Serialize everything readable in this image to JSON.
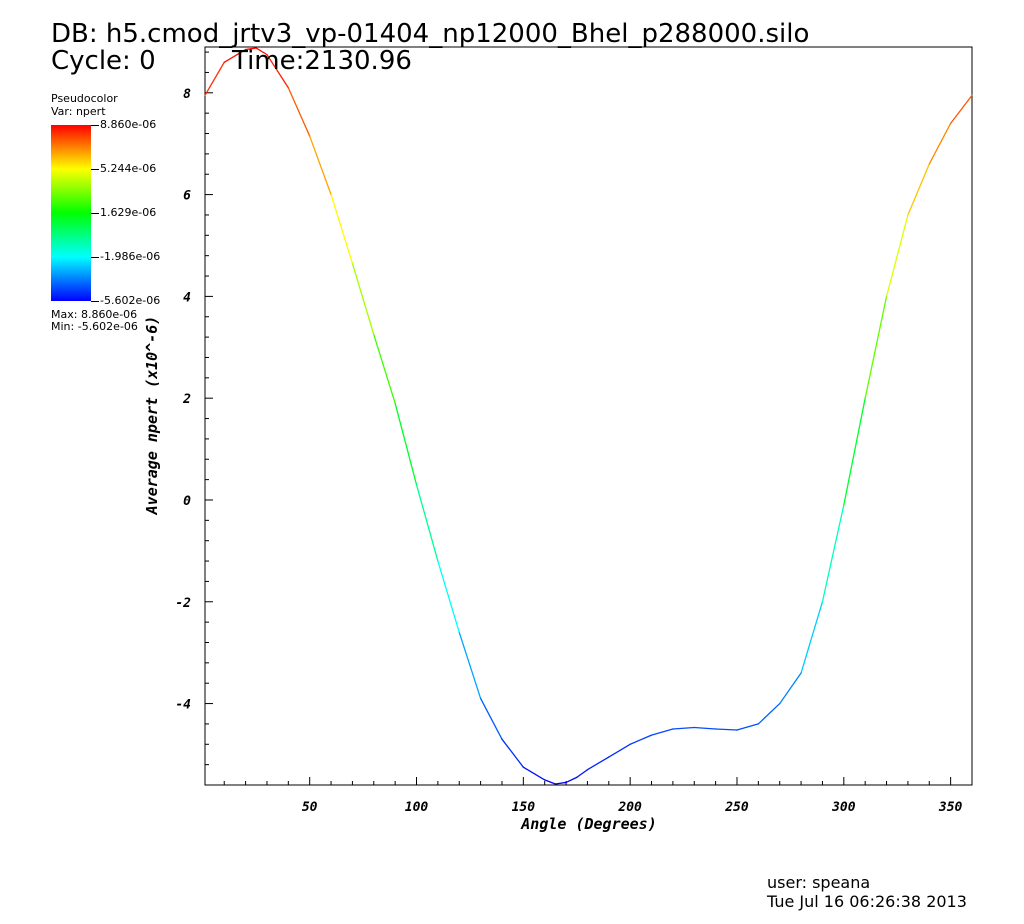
{
  "header": {
    "db_line": "DB: h5.cmod_jrtv3_vp-01404_np12000_Bhel_p288000.silo",
    "cycle": "Cycle: 0",
    "time": "Time:2130.96"
  },
  "legend": {
    "plot_type": "Pseudocolor",
    "var": "Var: npert",
    "ticks": [
      "8.860e-06",
      "5.244e-06",
      "1.629e-06",
      "-1.986e-06",
      "-5.602e-06"
    ],
    "max_label": "Max:  8.860e-06",
    "min_label": "Min: -5.602e-06",
    "colors": [
      "#ff0000",
      "#ffff00",
      "#00ff00",
      "#00ffff",
      "#0000ff"
    ]
  },
  "footer": {
    "user": "user: speana",
    "date": "Tue Jul 16 06:26:38 2013"
  },
  "chart_data": {
    "type": "line",
    "xlabel": "Angle (Degrees)",
    "ylabel": "Average npert (x10^-6)",
    "xlim": [
      1,
      360
    ],
    "ylim": [
      -5.6,
      8.9
    ],
    "xticks": [
      50,
      100,
      150,
      200,
      250,
      300,
      350
    ],
    "yticks": [
      -4,
      -2,
      0,
      2,
      4,
      6,
      8
    ],
    "color_scale": "value (rainbow: blue low, red high)",
    "x": [
      1,
      10,
      20,
      25,
      30,
      40,
      50,
      60,
      70,
      80,
      90,
      100,
      110,
      120,
      130,
      140,
      150,
      160,
      165,
      170,
      175,
      180,
      190,
      200,
      210,
      220,
      230,
      240,
      250,
      260,
      270,
      280,
      290,
      300,
      310,
      320,
      330,
      340,
      350,
      360
    ],
    "y": [
      7.95,
      8.6,
      8.85,
      8.88,
      8.75,
      8.1,
      7.15,
      6.0,
      4.65,
      3.25,
      1.9,
      0.3,
      -1.2,
      -2.6,
      -3.9,
      -4.7,
      -5.25,
      -5.5,
      -5.58,
      -5.55,
      -5.45,
      -5.3,
      -5.05,
      -4.8,
      -4.62,
      -4.5,
      -4.47,
      -4.5,
      -4.52,
      -4.4,
      -4.0,
      -3.4,
      -2.0,
      -0.1,
      2.0,
      4.0,
      5.6,
      6.6,
      7.4,
      7.95
    ]
  }
}
